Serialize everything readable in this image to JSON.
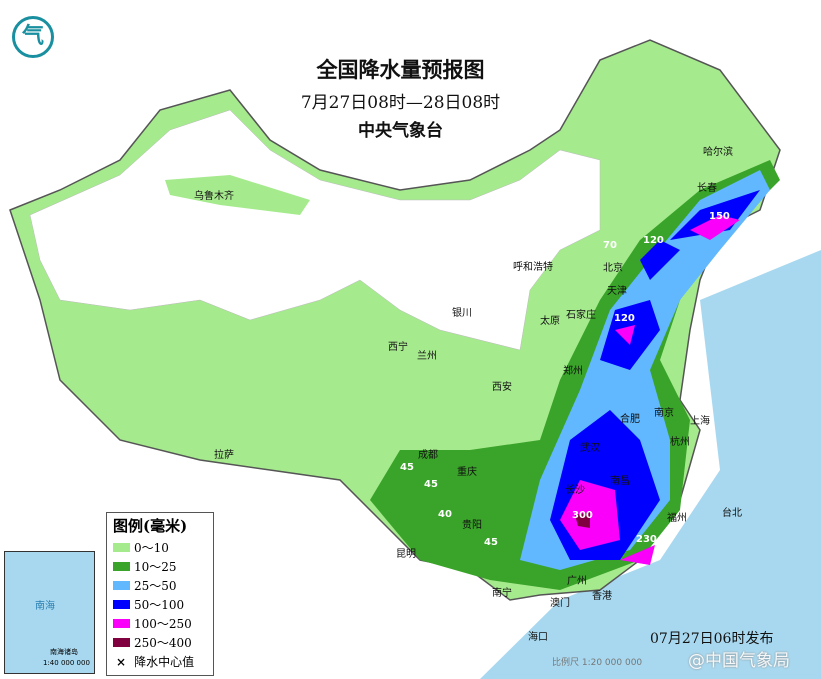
{
  "title": "全国降水量预报图",
  "period": "7月27日08时—28日08时",
  "issuer": "中央气象台",
  "legend": {
    "title": "图例(毫米)",
    "items": [
      {
        "label": "0～10",
        "color": "#a6ea8e"
      },
      {
        "label": "10～25",
        "color": "#3aa329"
      },
      {
        "label": "25～50",
        "color": "#61b8ff"
      },
      {
        "label": "50～100",
        "color": "#0000fe"
      },
      {
        "label": "100～250",
        "color": "#fa00fa"
      },
      {
        "label": "250～400",
        "color": "#800040"
      }
    ],
    "center_label": "降水中心值"
  },
  "cities": [
    "乌鲁木齐",
    "哈尔滨",
    "长春",
    "呼和浩特",
    "北京",
    "天津",
    "石家庄",
    "太原",
    "银川",
    "西宁",
    "兰州",
    "西安",
    "郑州",
    "合肥",
    "南京",
    "上海",
    "杭州",
    "武汉",
    "成都",
    "重庆",
    "南昌",
    "长沙",
    "福州",
    "台北",
    "贵阳",
    "昆明",
    "南宁",
    "广州",
    "香港",
    "澳门",
    "海口",
    "拉萨"
  ],
  "centers": [
    "70",
    "120",
    "150",
    "120",
    "45",
    "45",
    "40",
    "45",
    "300",
    "230"
  ],
  "inset": {
    "sea": "南海",
    "islands": "南海诸岛",
    "scale": "1:40 000 000"
  },
  "issued": "07月27日06时发布",
  "scale": "比例尺 1:20 000 000",
  "watermark": "@中国气象局"
}
